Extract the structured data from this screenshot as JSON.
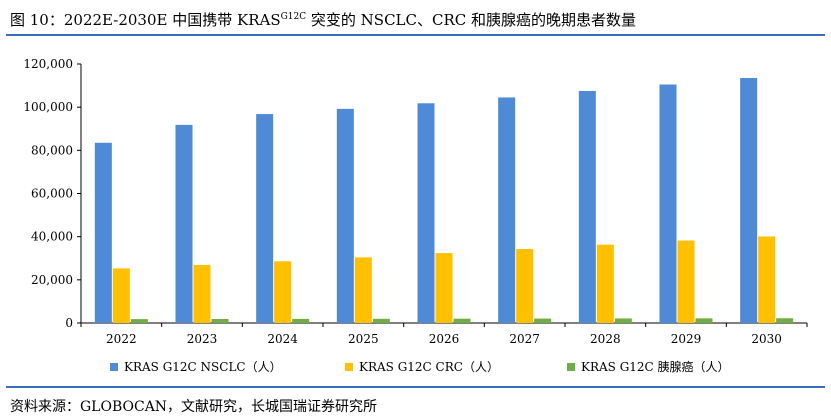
{
  "header": {
    "title_prefix": "图 10：2022E-2030E 中国携带 KRAS",
    "title_sup": "G12C",
    "title_suffix": " 突变的 NSCLC、CRC 和胰腺癌的晚期患者数量"
  },
  "footer": {
    "source": "资料来源：GLOBOCAN，文献研究，长城国瑞证券研究所"
  },
  "colors": {
    "rule": "#3d6fb6",
    "nsclc": "#4e8ad6",
    "crc": "#ffc000",
    "pancreatic": "#70ad47"
  },
  "chart_data": {
    "type": "bar",
    "categories": [
      "2022",
      "2023",
      "2024",
      "2025",
      "2026",
      "2027",
      "2028",
      "2029",
      "2030"
    ],
    "series": [
      {
        "name": "KRAS G12C NSCLC（人）",
        "color": "#4e8ad6",
        "values": [
          83500,
          91800,
          96800,
          99200,
          101800,
          104500,
          107500,
          110500,
          113500
        ]
      },
      {
        "name": "KRAS G12C CRC（人）",
        "color": "#ffc000",
        "values": [
          25300,
          26900,
          28600,
          30400,
          32400,
          34300,
          36300,
          38200,
          40100
        ]
      },
      {
        "name": "KRAS G12C 胰腺癌（人）",
        "color": "#70ad47",
        "values": [
          1800,
          1850,
          1900,
          1950,
          2000,
          2050,
          2100,
          2150,
          2200
        ]
      }
    ],
    "yticks": [
      "0",
      "20,000",
      "40,000",
      "60,000",
      "80,000",
      "100,000",
      "120,000"
    ],
    "ylim": [
      0,
      120000
    ],
    "legend_position": "bottom",
    "grid": false
  }
}
